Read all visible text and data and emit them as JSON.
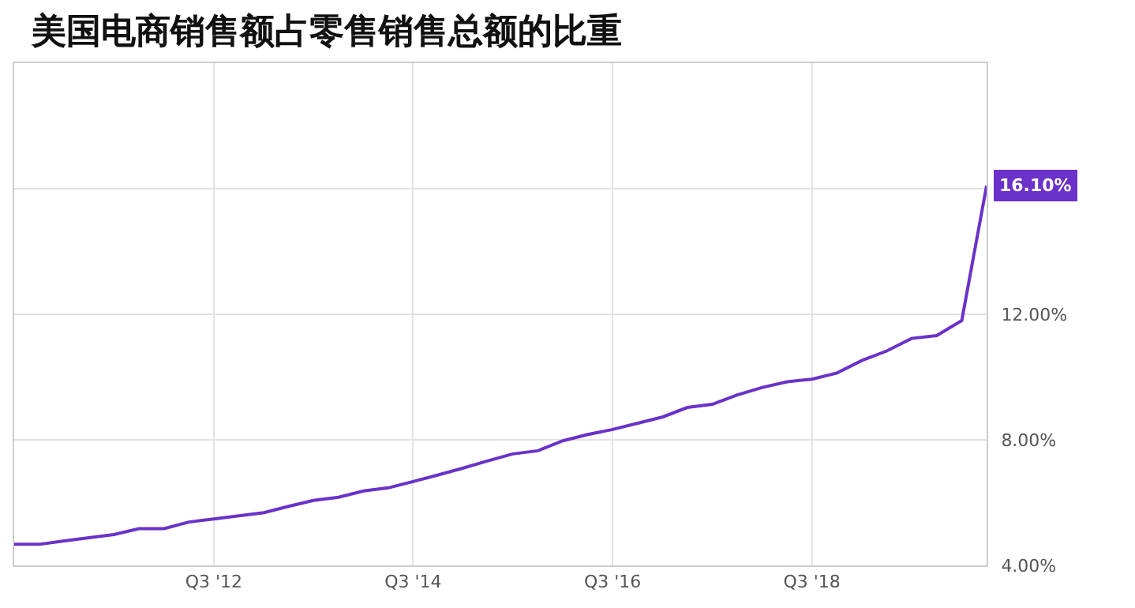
{
  "chart_data": {
    "type": "line",
    "title": "美国电商销售额占零售销售总额的比重",
    "x": [
      "2010-07",
      "2010-10",
      "2011-01",
      "2011-04",
      "2011-07",
      "2011-10",
      "2012-01",
      "2012-04",
      "2012-07",
      "2012-10",
      "2013-01",
      "2013-04",
      "2013-07",
      "2013-10",
      "2014-01",
      "2014-04",
      "2014-07",
      "2014-10",
      "2015-01",
      "2015-04",
      "2015-07",
      "2015-10",
      "2016-01",
      "2016-04",
      "2016-07",
      "2016-10",
      "2017-01",
      "2017-04",
      "2017-07",
      "2017-10",
      "2018-01",
      "2018-04",
      "2018-07",
      "2018-10",
      "2019-01",
      "2019-04",
      "2019-07",
      "2019-10",
      "2020-01",
      "2020-04"
    ],
    "series": [
      {
        "color": "#6a32c9",
        "values": [
          4.67,
          4.67,
          4.78,
          4.88,
          4.98,
          5.17,
          5.17,
          5.38,
          5.48,
          5.58,
          5.68,
          5.88,
          6.07,
          6.17,
          6.37,
          6.47,
          6.67,
          6.88,
          7.1,
          7.33,
          7.55,
          7.65,
          7.97,
          8.17,
          8.33,
          8.53,
          8.73,
          9.03,
          9.13,
          9.43,
          9.67,
          9.85,
          9.93,
          10.13,
          10.53,
          10.83,
          11.23,
          11.32,
          11.8,
          16.1
        ]
      }
    ],
    "xlim": [
      "2010-07",
      "2020-04"
    ],
    "xticks": [
      {
        "value": "2012-07",
        "label": "Q3 '12"
      },
      {
        "value": "2014-07",
        "label": "Q3 '14"
      },
      {
        "value": "2016-07",
        "label": "Q3 '16"
      },
      {
        "value": "2018-07",
        "label": "Q3 '18"
      }
    ],
    "ylim": [
      4,
      20
    ],
    "yticks": [
      {
        "value": 4,
        "label": "4.00%"
      },
      {
        "value": 8,
        "label": "8.00%"
      },
      {
        "value": 12,
        "label": "12.00%"
      },
      {
        "value": 16,
        "label": null
      }
    ],
    "annotations": [
      {
        "text": "16.10%",
        "x": "2020-04",
        "y": 16.1
      }
    ],
    "grid": true,
    "marker": "none",
    "line_style": "solid"
  }
}
